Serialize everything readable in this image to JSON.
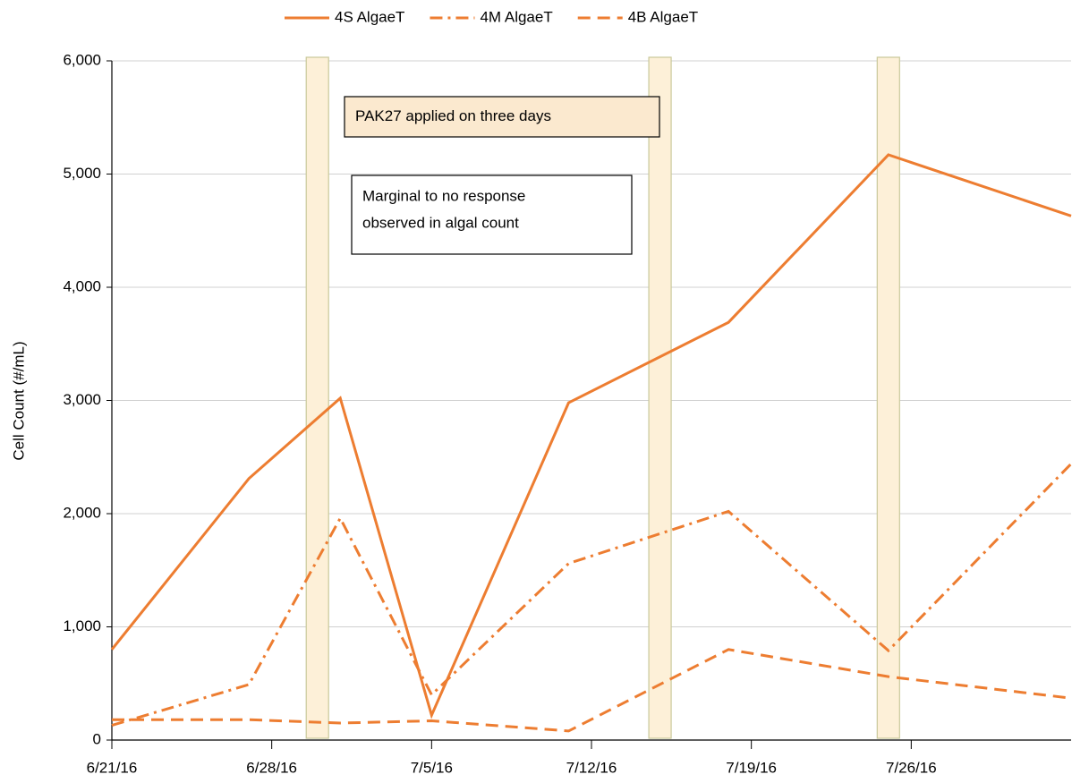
{
  "chart_data": {
    "type": "line",
    "y_axis_label": "Cell Count (#/mL)",
    "x": [
      "2016-06-21",
      "2016-06-27",
      "2016-07-01",
      "2016-07-05",
      "2016-07-11",
      "2016-07-18",
      "2016-07-25",
      "2016-08-02"
    ],
    "series": [
      {
        "name": "4S AlgaeT",
        "color": "#ed7d31",
        "line_style": "solid",
        "values": [
          800,
          2310,
          3020,
          220,
          2980,
          3690,
          5170,
          4630
        ]
      },
      {
        "name": "4M AlgaeT",
        "color": "#ed7d31",
        "line_style": "dashdot",
        "values": [
          130,
          490,
          1960,
          400,
          1560,
          2020,
          790,
          2440
        ]
      },
      {
        "name": "4B AlgaeT",
        "color": "#ed7d31",
        "line_style": "dashed",
        "values": [
          180,
          180,
          150,
          170,
          80,
          800,
          560,
          370
        ]
      }
    ],
    "highlight_dates": [
      "2016-06-30",
      "2016-07-15",
      "2016-07-25"
    ],
    "highlight_color": "#fdf0d8",
    "xlim": [
      "2016-06-21",
      "2016-08-02"
    ],
    "xticks": [
      {
        "value": "2016-06-21",
        "label": "6/21/16"
      },
      {
        "value": "2016-06-28",
        "label": "6/28/16"
      },
      {
        "value": "2016-07-05",
        "label": "7/5/16"
      },
      {
        "value": "2016-07-12",
        "label": "7/12/16"
      },
      {
        "value": "2016-07-19",
        "label": "7/19/16"
      },
      {
        "value": "2016-07-26",
        "label": "7/26/16"
      }
    ],
    "ylim": [
      0,
      6000
    ],
    "yticks": [
      0,
      {
        "value": 1000,
        "label": "1,000"
      },
      {
        "value": 2000,
        "label": "2,000"
      },
      {
        "value": 3000,
        "label": "3,000"
      },
      {
        "value": 4000,
        "label": "4,000"
      },
      {
        "value": 5000,
        "label": "5,000"
      },
      {
        "value": 6000,
        "label": "6,000"
      }
    ],
    "grid": true,
    "legend_position": "top",
    "annotations": [
      {
        "lines": [
          "PAK27 applied on three days"
        ],
        "background": "#fbe9cf"
      },
      {
        "lines": [
          "Marginal to no response",
          "observed in algal count"
        ],
        "background": "#ffffff"
      }
    ]
  }
}
